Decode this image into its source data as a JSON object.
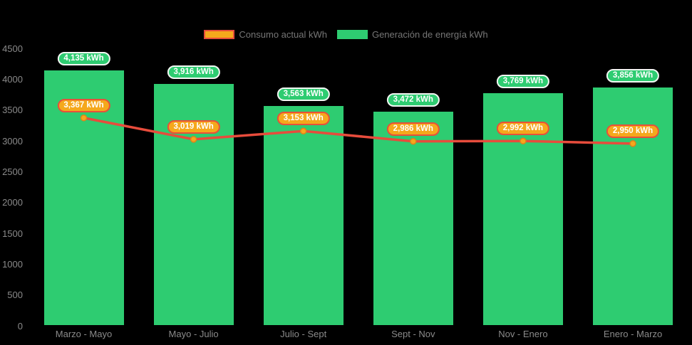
{
  "legend": {
    "items": [
      {
        "id": "consumption",
        "label": "Consumo actual kWh"
      },
      {
        "id": "generation",
        "label": "Generación de energía kWh"
      }
    ]
  },
  "colors": {
    "background": "#000000",
    "bar": "#2ecc71",
    "line": "#e74c3c",
    "point_fill": "#f5a81c",
    "point_stroke": "#e0821a",
    "badge_generation_bg": "#2ecc71",
    "badge_generation_border": "#f2f7f3",
    "badge_consumption_bg": "#f5a81c",
    "badge_consumption_border": "#e8503a",
    "axis_text": "#8a8a8a",
    "legend_text": "#767676"
  },
  "chart_data": {
    "type": "bar+line",
    "categories": [
      "Marzo - Mayo",
      "Mayo - Julio",
      "Julio - Sept",
      "Sept - Nov",
      "Nov - Enero",
      "Enero - Marzo"
    ],
    "series": [
      {
        "name": "Generación de energía kWh",
        "type": "bar",
        "values": [
          4135,
          3916,
          3563,
          3472,
          3769,
          3856
        ],
        "labels": [
          "4,135 kWh",
          "3,916 kWh",
          "3,563 kWh",
          "3,472 kWh",
          "3,769 kWh",
          "3,856 kWh"
        ]
      },
      {
        "name": "Consumo actual kWh",
        "type": "line",
        "values": [
          3367,
          3019,
          3153,
          2986,
          2992,
          2950
        ],
        "labels": [
          "3,367 kWh",
          "3,019 kWh",
          "3,153 kWh",
          "2,986 kWh",
          "2,992 kWh",
          "2,950 kWh"
        ]
      }
    ],
    "y_ticks": [
      0,
      500,
      1000,
      1500,
      2000,
      2500,
      3000,
      3500,
      4000,
      4500
    ],
    "ylim": [
      0,
      4500
    ],
    "grid": false,
    "legend_position": "top-center"
  }
}
